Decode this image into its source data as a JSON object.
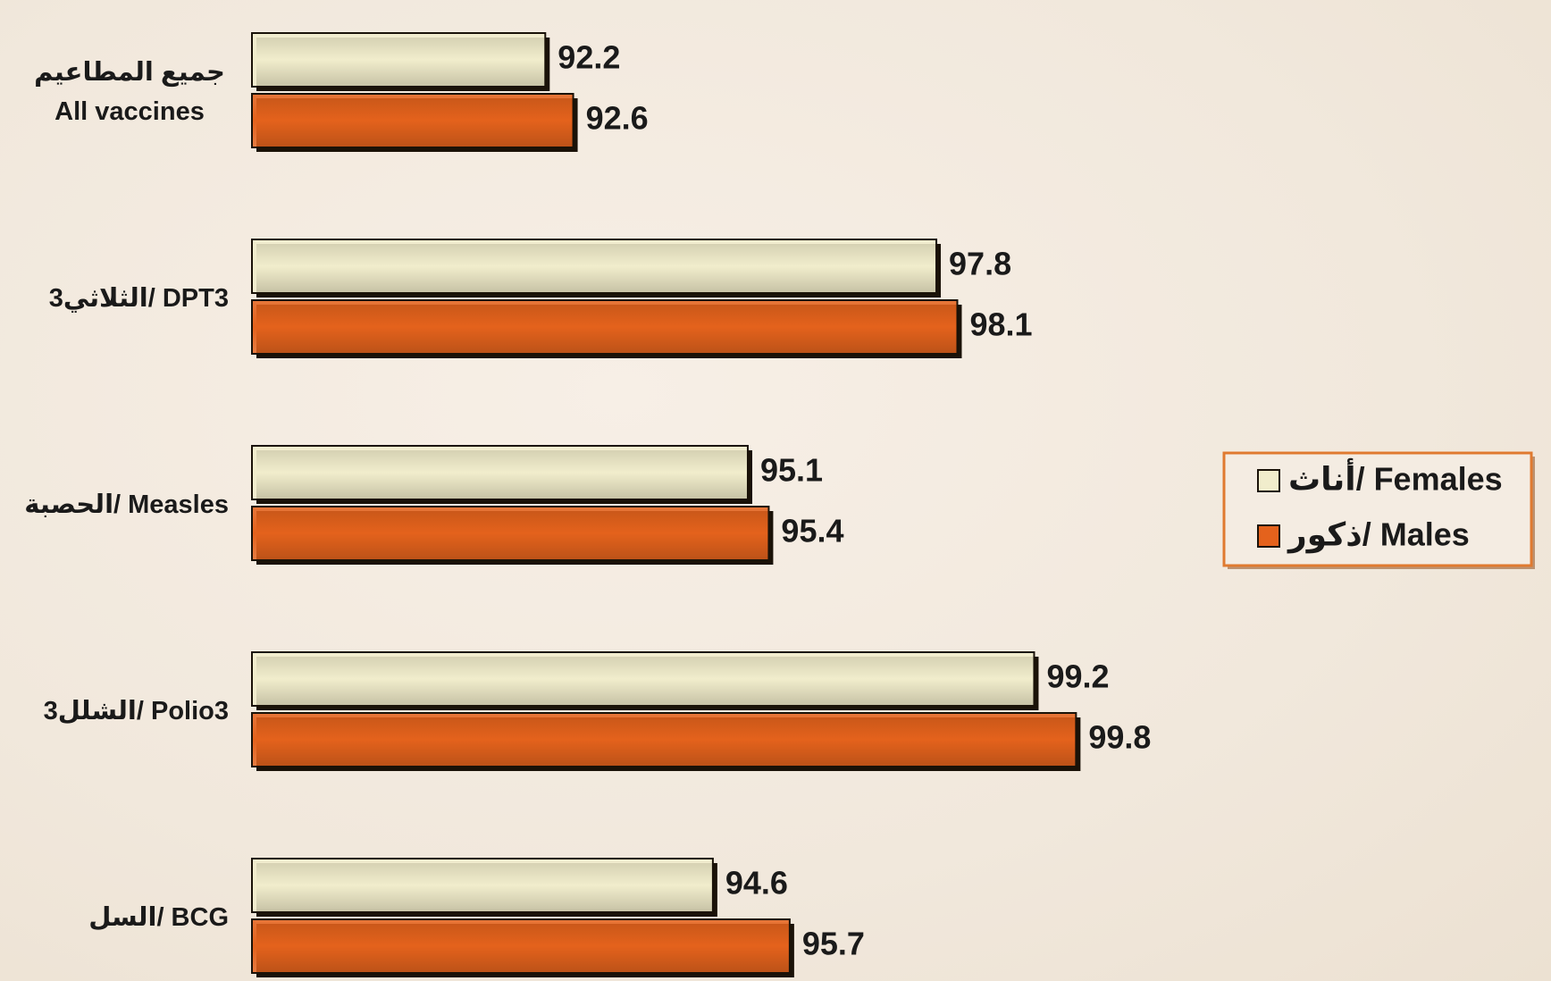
{
  "chart_data": {
    "type": "barh",
    "categories": [
      "جميع المطاعيم All vaccines",
      "الثلاثي3/ DPT3",
      "الحصبة/ Measles",
      "الشلل3/ Polio3",
      "السل/ BCG"
    ],
    "series": [
      {
        "name": "أناث/ Females",
        "color": "#f1edcc",
        "values": [
          92.2,
          97.8,
          95.1,
          99.2,
          94.6
        ]
      },
      {
        "name": "ذكور/ Males",
        "color": "#e4621c",
        "values": [
          92.6,
          98.1,
          95.4,
          99.8,
          95.7
        ]
      }
    ],
    "xlim": [
      88,
      100
    ],
    "legend": "right"
  }
}
